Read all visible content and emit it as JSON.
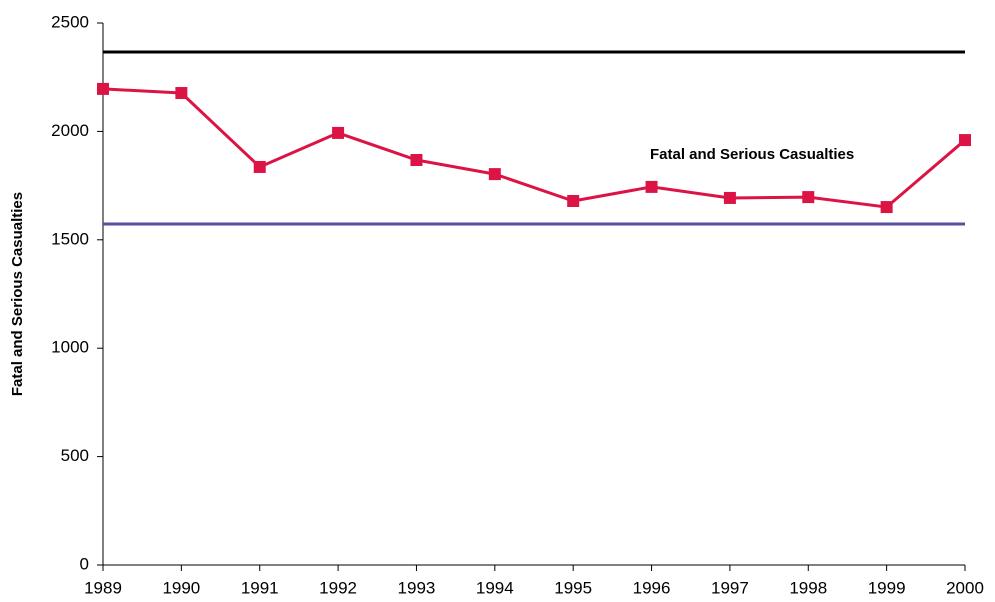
{
  "chart_data": {
    "type": "line",
    "y_label": "Fatal and Serious Casualties",
    "annotation": "Fatal and Serious Casualties",
    "x": [
      1989,
      1990,
      1991,
      1992,
      1993,
      1994,
      1995,
      1996,
      1997,
      1998,
      1999,
      2000
    ],
    "series": [
      {
        "name": "Fatal and Serious Casualties",
        "color": "#dc1446",
        "values": [
          2196,
          2177,
          1836,
          1993,
          1868,
          1803,
          1679,
          1744,
          1693,
          1697,
          1651,
          1960
        ]
      }
    ],
    "reference_lines": [
      {
        "value": 2366,
        "color": "#000000"
      },
      {
        "value": 1573,
        "color": "#5a4fa0"
      }
    ],
    "xlim": [
      1989,
      2000
    ],
    "xticks": [
      1989,
      1990,
      1991,
      1992,
      1993,
      1994,
      1995,
      1996,
      1997,
      1998,
      1999,
      2000
    ],
    "ylim": [
      0,
      2500
    ],
    "yticks": [
      0,
      500,
      1000,
      1500,
      2000,
      2500
    ],
    "grid": false
  }
}
